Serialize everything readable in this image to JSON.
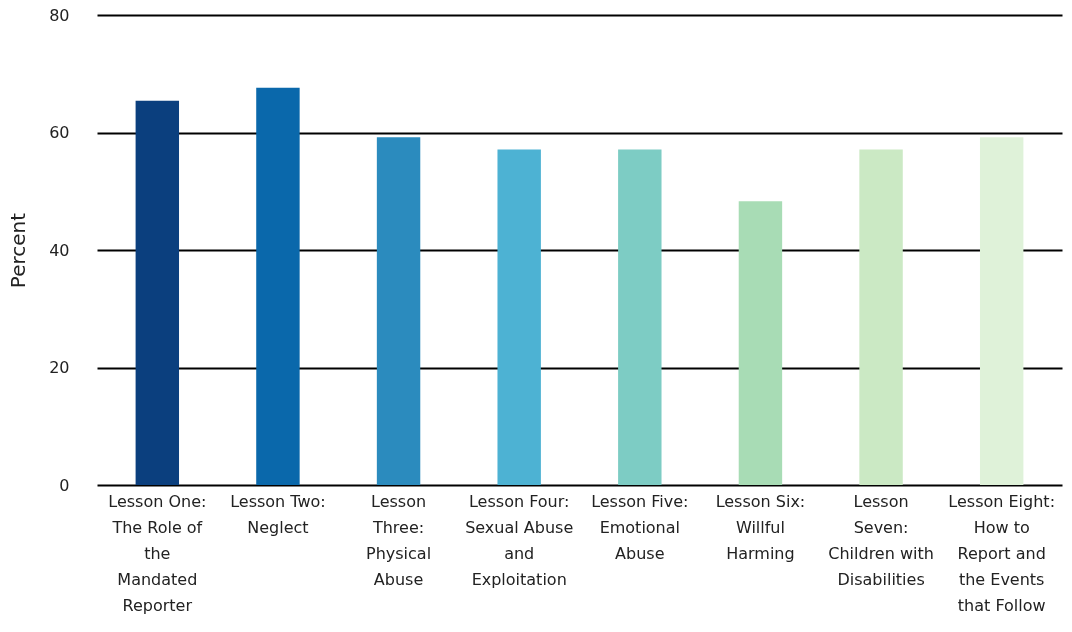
{
  "chart_data": {
    "type": "bar",
    "ylabel": "Percent",
    "categories": [
      "Lesson One: The Role of the Mandated Reporter",
      "Lesson Two: Neglect",
      "Lesson Three: Physical Abuse",
      "Lesson Four: Sexual Abuse and Exploitation",
      "Lesson Five: Emotional Abuse",
      "Lesson Six: Willful Harming",
      "Lesson Seven: Children with Disabilities",
      "Lesson Eight: How to Report and the Events that Follow"
    ],
    "values": [
      65.4,
      67.6,
      59.2,
      57.1,
      57.1,
      48.3,
      57.1,
      59.2
    ],
    "colors": [
      "#0b3f7e",
      "#0a68ab",
      "#2b8bbe",
      "#4db2d3",
      "#7dccc4",
      "#a8dcb5",
      "#cbe9c4",
      "#dff2d9"
    ],
    "ylim": [
      0,
      80
    ],
    "yticks": [
      0,
      20,
      40,
      60,
      80
    ],
    "grid": "y"
  }
}
